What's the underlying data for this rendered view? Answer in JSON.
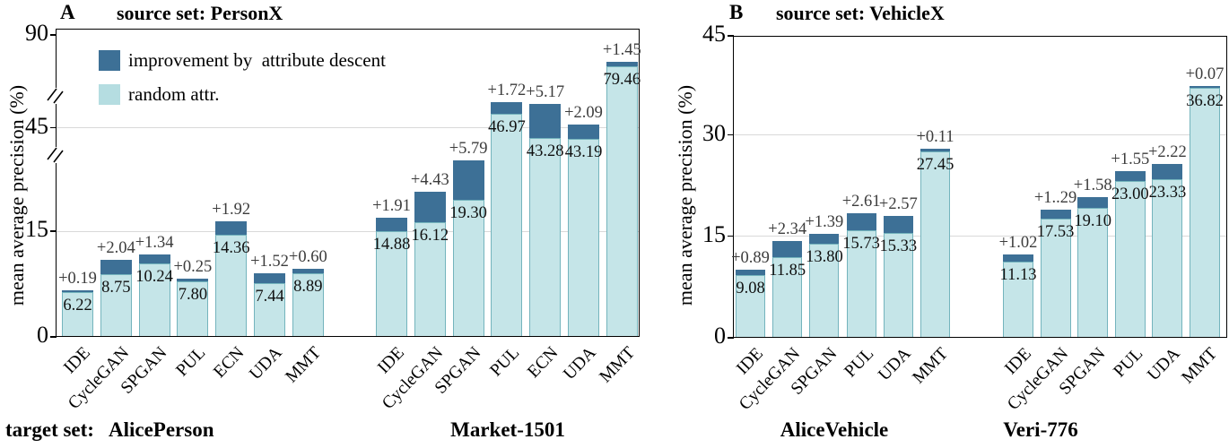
{
  "legend": {
    "items": [
      {
        "name": "improvement",
        "label": "improvement by  attribute descent",
        "color": "#3d7096"
      },
      {
        "name": "random",
        "label": "random attr.",
        "color": "#b5dde1"
      }
    ]
  },
  "colors": {
    "improvement_bar": "#3d7096",
    "random_bar": "#c5e5e8",
    "bar_border": "#74b4bd",
    "gridline": "#d9d9d9",
    "axis": "#000000"
  },
  "chart_data": [
    {
      "type": "bar",
      "stacked": true,
      "panel_label": "A",
      "title": "source set: PersonX",
      "ylabel": "mean average precision (%)",
      "ylim": [
        0,
        90
      ],
      "yticks": [
        0,
        15,
        45,
        90
      ],
      "gridline_values": [
        15,
        45
      ],
      "grid": "horizontal",
      "axis_break": true,
      "legend_position": "upper-left-inside",
      "groups": [
        {
          "label": "AlicePerson",
          "label_prefix": "target set:",
          "categories": [
            "IDE",
            "CycleGAN",
            "SPGAN",
            "PUL",
            "ECN",
            "UDA",
            "MMT"
          ],
          "series": [
            {
              "name": "random attr.",
              "values": [
                6.22,
                8.75,
                10.24,
                7.8,
                14.36,
                7.44,
                8.89
              ]
            },
            {
              "name": "improvement by attribute descent",
              "values": [
                0.19,
                2.04,
                1.34,
                0.25,
                1.92,
                1.52,
                0.6
              ]
            }
          ],
          "base_labels": [
            "6.22",
            "8.75",
            "10.24",
            "7.80",
            "14.36",
            "7.44",
            "8.89"
          ],
          "improvement_labels": [
            "+0.19",
            "+2.04",
            "+1.34",
            "+0.25",
            "+1.92",
            "+1.52",
            "+0.60"
          ]
        },
        {
          "label": "Market-1501",
          "categories": [
            "IDE",
            "CycleGAN",
            "SPGAN",
            "PUL",
            "ECN",
            "UDA",
            "MMT"
          ],
          "series": [
            {
              "name": "random attr.",
              "values": [
                14.88,
                16.12,
                19.3,
                46.97,
                43.28,
                43.19,
                79.46
              ]
            },
            {
              "name": "improvement by attribute descent",
              "values": [
                1.91,
                4.43,
                5.79,
                1.72,
                5.17,
                2.09,
                1.45
              ]
            }
          ],
          "base_labels": [
            "14.88",
            "16.12",
            "19.30",
            "46.97",
            "43.28",
            "43.19",
            "79.46"
          ],
          "improvement_labels": [
            "+1.91",
            "+4.43",
            "+5.79",
            "+1.72",
            "+5.17",
            "+2.09",
            "+1.45"
          ]
        }
      ]
    },
    {
      "type": "bar",
      "stacked": true,
      "panel_label": "B",
      "title": "source set: VehicleX",
      "ylabel": "mean average precision (%)",
      "ylim": [
        0,
        45
      ],
      "yticks": [
        0,
        15,
        30,
        45
      ],
      "gridline_values": [
        15,
        30
      ],
      "grid": "horizontal",
      "axis_break": false,
      "groups": [
        {
          "label": "AliceVehicle",
          "categories": [
            "IDE",
            "CycleGAN",
            "SPGAN",
            "PUL",
            "UDA",
            "MMT"
          ],
          "series": [
            {
              "name": "random attr.",
              "values": [
                9.08,
                11.85,
                13.8,
                15.73,
                15.33,
                27.45
              ]
            },
            {
              "name": "improvement by attribute descent",
              "values": [
                0.89,
                2.34,
                1.39,
                2.61,
                2.57,
                0.11
              ]
            }
          ],
          "base_labels": [
            "9.08",
            "11.85",
            "13.80",
            "15.73",
            "15.33",
            "27.45"
          ],
          "improvement_labels": [
            "+0.89",
            "+2.34",
            "+1.39",
            "+2.61",
            "+2.57",
            "+0.11"
          ]
        },
        {
          "label": "Veri-776",
          "categories": [
            "IDE",
            "CycleGAN",
            "SPGAN",
            "PUL",
            "UDA",
            "MMT"
          ],
          "series": [
            {
              "name": "random attr.",
              "values": [
                11.13,
                17.53,
                19.1,
                23.0,
                23.33,
                36.82
              ]
            },
            {
              "name": "improvement by attribute descent",
              "values": [
                1.02,
                1.29,
                1.58,
                1.55,
                2.22,
                0.07
              ]
            }
          ],
          "base_labels": [
            "11.13",
            "17.53",
            "19.10",
            "23.00",
            "23.33",
            "36.82"
          ],
          "improvement_labels": [
            "+1.02",
            "+1..29",
            "+1.58",
            "+1.55",
            "+2.22",
            "+0.07"
          ]
        }
      ]
    }
  ]
}
